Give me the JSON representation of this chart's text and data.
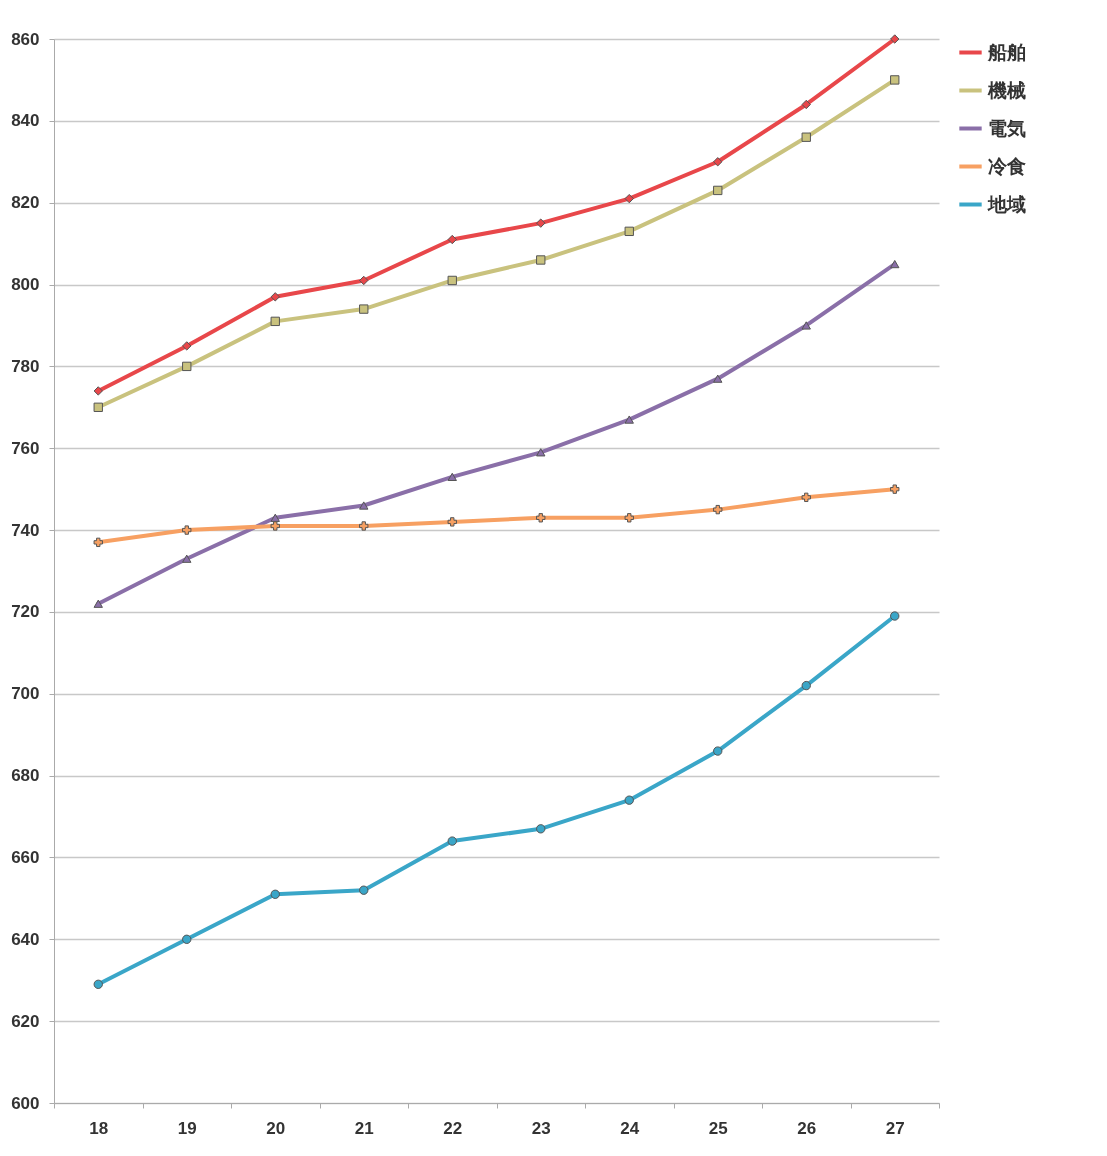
{
  "chart_data": {
    "type": "line",
    "categories": [
      "18",
      "19",
      "20",
      "21",
      "22",
      "23",
      "24",
      "25",
      "26",
      "27"
    ],
    "series": [
      {
        "name": "船舶",
        "color": "#e8474a",
        "marker": "diamond",
        "values": [
          774,
          785,
          797,
          801,
          811,
          815,
          821,
          830,
          844,
          860
        ]
      },
      {
        "name": "機械",
        "color": "#c9c27e",
        "marker": "square",
        "values": [
          770,
          780,
          791,
          794,
          801,
          806,
          813,
          823,
          836,
          850
        ]
      },
      {
        "name": "電気",
        "color": "#8a6fa8",
        "marker": "triangle",
        "values": [
          722,
          733,
          743,
          746,
          753,
          759,
          767,
          777,
          790,
          805
        ]
      },
      {
        "name": "冷食",
        "color": "#f7a062",
        "marker": "cross",
        "values": [
          737,
          740,
          741,
          741,
          742,
          743,
          743,
          745,
          748,
          750
        ]
      },
      {
        "name": "地域",
        "color": "#3aa6c8",
        "marker": "circle",
        "values": [
          629,
          640,
          651,
          652,
          664,
          667,
          674,
          686,
          702,
          719
        ]
      }
    ],
    "ylim": [
      600,
      860
    ],
    "yticks": [
      600,
      620,
      640,
      660,
      680,
      700,
      720,
      740,
      760,
      780,
      800,
      820,
      840,
      860
    ],
    "grid": "y",
    "legend": "right"
  }
}
